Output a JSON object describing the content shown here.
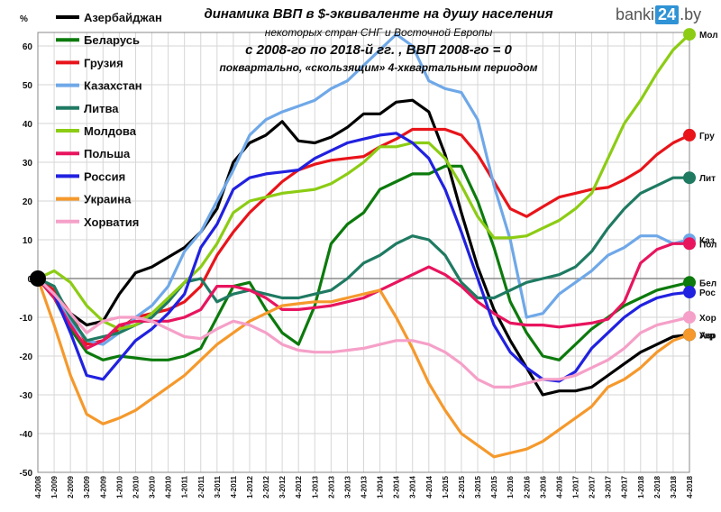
{
  "watermark": {
    "pre": "banki",
    "num": "24",
    "post": ".by"
  },
  "chart_data": {
    "type": "line",
    "title": "динамика ВВП в $-эквиваленте на душу населения",
    "subtitle_lines": [
      "некоторых стран СНГ и Восточной Европы",
      "с 2008-го по 2018-й гг. , ВВП 2008-го = 0",
      "поквартально, «скользящим» 4-хквартальным периодом"
    ],
    "ylabel": "%",
    "ylim": [
      -50,
      65
    ],
    "yticks": [
      60,
      50,
      40,
      30,
      20,
      10,
      0,
      -10,
      -20,
      -30,
      -40,
      -50
    ],
    "grid": true,
    "legend_position": "top-left",
    "x": [
      "4-2008",
      "1-2009",
      "2-2009",
      "3-2009",
      "4-2009",
      "1-2010",
      "2-2010",
      "3-2010",
      "4-2010",
      "1-2011",
      "2-2011",
      "3-2011",
      "4-2011",
      "1-2012",
      "2-2012",
      "3-2012",
      "4-2012",
      "1-2013",
      "2-2013",
      "3-2013",
      "4-2013",
      "1-2014",
      "2-2014",
      "3-2014",
      "4-2014",
      "1-2015",
      "2-2015",
      "3-2015",
      "4-2015",
      "1-2016",
      "2-2016",
      "3-2016",
      "4-2016",
      "1-2017",
      "2-2017",
      "3-2017",
      "4-2017",
      "1-2018",
      "2-2018",
      "3-2018",
      "4-2018"
    ],
    "series": [
      {
        "name": "Азербайджан",
        "end_label": "Азр",
        "color": "#000000",
        "values": [
          0,
          -5,
          -9,
          -12,
          -11,
          -4,
          1.5,
          3,
          5.5,
          8,
          12,
          18,
          30,
          35,
          37,
          40.5,
          35.5,
          35,
          36.5,
          39,
          42.5,
          42.5,
          45.5,
          46,
          43,
          32,
          17,
          3,
          -8,
          -16,
          -23,
          -30,
          -29,
          -29,
          -28,
          -25,
          -22,
          -19,
          -17,
          -15,
          -14.5
        ]
      },
      {
        "name": "Беларусь",
        "end_label": "Бел",
        "color": "#0c7a0c",
        "values": [
          0,
          -5,
          -13,
          -19,
          -21,
          -20,
          -20.5,
          -21,
          -21,
          -20,
          -18,
          -10,
          -2,
          -1,
          -8,
          -14,
          -17,
          -7,
          9,
          14,
          17,
          23,
          25,
          27,
          27,
          29,
          29,
          20,
          8,
          -6,
          -14,
          -20,
          -21,
          -17,
          -13,
          -10,
          -7,
          -5,
          -3,
          -2,
          -1
        ]
      },
      {
        "name": "Грузия",
        "end_label": "Гру",
        "color": "#e8141a",
        "values": [
          0,
          -3,
          -9,
          -17,
          -16,
          -13,
          -10,
          -9,
          -8,
          -6,
          -2,
          6,
          12,
          17,
          21,
          25,
          28,
          29.5,
          30.5,
          31,
          31.5,
          34,
          36,
          38.5,
          38.5,
          38.5,
          37,
          32,
          25,
          18,
          16,
          18.5,
          21,
          22,
          23,
          23.5,
          25.5,
          28,
          32,
          35,
          37
        ]
      },
      {
        "name": "Казахстан",
        "end_label": "Каз",
        "color": "#6fa8e8",
        "values": [
          0,
          -4,
          -11,
          -16,
          -17,
          -14,
          -10,
          -7,
          -2,
          7,
          12,
          20,
          28,
          37,
          41,
          43,
          44.5,
          46,
          49,
          51,
          55,
          59,
          63,
          60,
          51,
          49,
          48,
          41,
          24,
          10,
          -10,
          -9,
          -4,
          -1,
          2,
          6,
          8,
          11,
          11,
          9,
          10
        ]
      },
      {
        "name": "Литва",
        "end_label": "Лит",
        "color": "#1f7a62",
        "values": [
          0,
          -2,
          -10,
          -16,
          -15,
          -14,
          -12,
          -10,
          -6,
          -1,
          0,
          -6,
          -4,
          -3,
          -4,
          -5,
          -5,
          -4,
          -3,
          0,
          4,
          6,
          9,
          11,
          10,
          6,
          -1,
          -5,
          -5,
          -3,
          -1,
          0,
          1,
          3,
          7,
          13,
          18,
          22,
          24,
          26,
          26
        ]
      },
      {
        "name": "Молдова",
        "end_label": "Мол",
        "color": "#8ccc14",
        "values": [
          0,
          2,
          -1,
          -7,
          -11,
          -13,
          -12,
          -9,
          -5,
          -1,
          3,
          9,
          17,
          20,
          21,
          22,
          22.5,
          23,
          24.5,
          27,
          30,
          34,
          34,
          35,
          35,
          31,
          24,
          16,
          10.5,
          10.5,
          11,
          13,
          15,
          18,
          22,
          31,
          40,
          46,
          53,
          59,
          63
        ]
      },
      {
        "name": "Польша",
        "end_label": "Пол",
        "color": "#e8145e",
        "values": [
          0,
          -5,
          -12,
          -18,
          -16,
          -12,
          -11,
          -11,
          -11,
          -10,
          -8,
          -2,
          -2,
          -3,
          -5,
          -8,
          -8,
          -7.5,
          -7,
          -6,
          -5,
          -3,
          -1,
          1,
          3,
          1,
          -2,
          -6,
          -9,
          -11.5,
          -12,
          -12,
          -12.5,
          -12,
          -11.5,
          -10.5,
          -6,
          4,
          7.5,
          9,
          9
        ]
      },
      {
        "name": "Россия",
        "end_label": "Рос",
        "color": "#2121e0",
        "values": [
          0,
          -4,
          -14,
          -25,
          -26,
          -21,
          -16,
          -13,
          -9,
          -4,
          8,
          14,
          23,
          26,
          27,
          27.5,
          28,
          31,
          33,
          35,
          36,
          37,
          37.5,
          35,
          31,
          23,
          12,
          0,
          -12,
          -19,
          -23,
          -26,
          -26.5,
          -24,
          -18,
          -14,
          -10,
          -7,
          -5,
          -4,
          -3.5
        ]
      },
      {
        "name": "Украина",
        "end_label": "Укр",
        "color": "#f5992c",
        "values": [
          0,
          -12,
          -25,
          -35,
          -37.5,
          -36,
          -34,
          -31,
          -28,
          -25,
          -21,
          -17,
          -14,
          -11,
          -9,
          -7,
          -6.5,
          -6,
          -6,
          -5,
          -4,
          -3,
          -10,
          -18,
          -27,
          -34,
          -40,
          -43,
          -46,
          -45,
          -44,
          -42,
          -39,
          -36,
          -33,
          -28,
          -26,
          -23,
          -19,
          -16,
          -14.5
        ]
      },
      {
        "name": "Хорватия",
        "end_label": "Хор",
        "color": "#f5a0c8",
        "values": [
          0,
          -4,
          -9,
          -14,
          -11,
          -10,
          -10,
          -11,
          -13,
          -15,
          -15.5,
          -13,
          -11,
          -12,
          -14,
          -17,
          -18.5,
          -19,
          -19,
          -18.5,
          -18,
          -17,
          -16,
          -16,
          -17,
          -19,
          -22,
          -26,
          -28,
          -28,
          -27,
          -26,
          -26,
          -25,
          -23,
          -21,
          -18,
          -14,
          -12,
          -11,
          -10
        ]
      }
    ]
  }
}
